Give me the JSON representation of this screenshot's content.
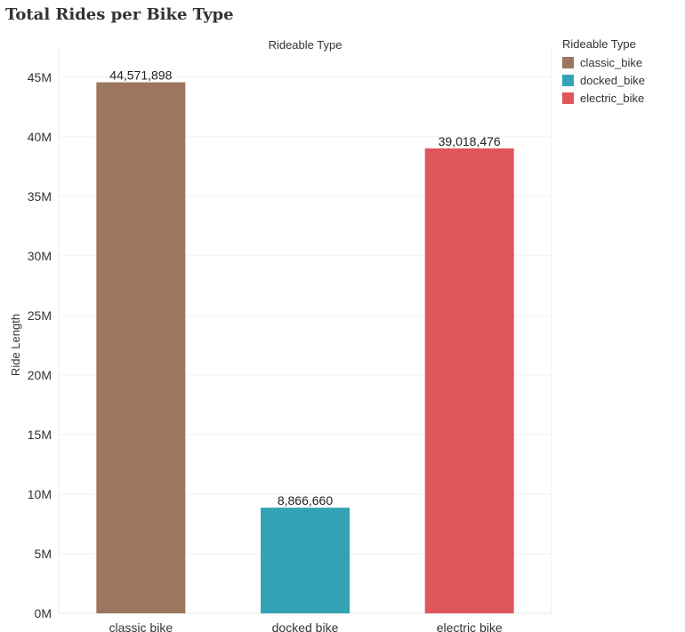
{
  "chart_data": {
    "type": "bar",
    "title": "Total Rides per Bike Type",
    "column_header": "Rideable Type",
    "ylabel": "Ride Length",
    "xlabel": "",
    "categories": [
      "classic_bike",
      "docked_bike",
      "electric_bike"
    ],
    "tick_labels": [
      "classic  bike",
      "docked  bike",
      "electric  bike"
    ],
    "values": [
      44571898,
      8866660,
      39018476
    ],
    "value_labels": [
      "44,571,898",
      "8,866,660",
      "39,018,476"
    ],
    "colors": [
      "#9c765e",
      "#33a2b5",
      "#e1565a"
    ],
    "ylim": [
      0,
      47000000
    ],
    "yticks": [
      0,
      5000000,
      10000000,
      15000000,
      20000000,
      25000000,
      30000000,
      35000000,
      40000000,
      45000000
    ],
    "ytick_labels": [
      "0M",
      "5M",
      "10M",
      "15M",
      "20M",
      "25M",
      "30M",
      "35M",
      "40M",
      "45M"
    ],
    "grid": true,
    "legend": {
      "title": "Rideable Type",
      "placement": "top-right",
      "items": [
        "classic_bike",
        "docked_bike",
        "electric_bike"
      ]
    }
  }
}
